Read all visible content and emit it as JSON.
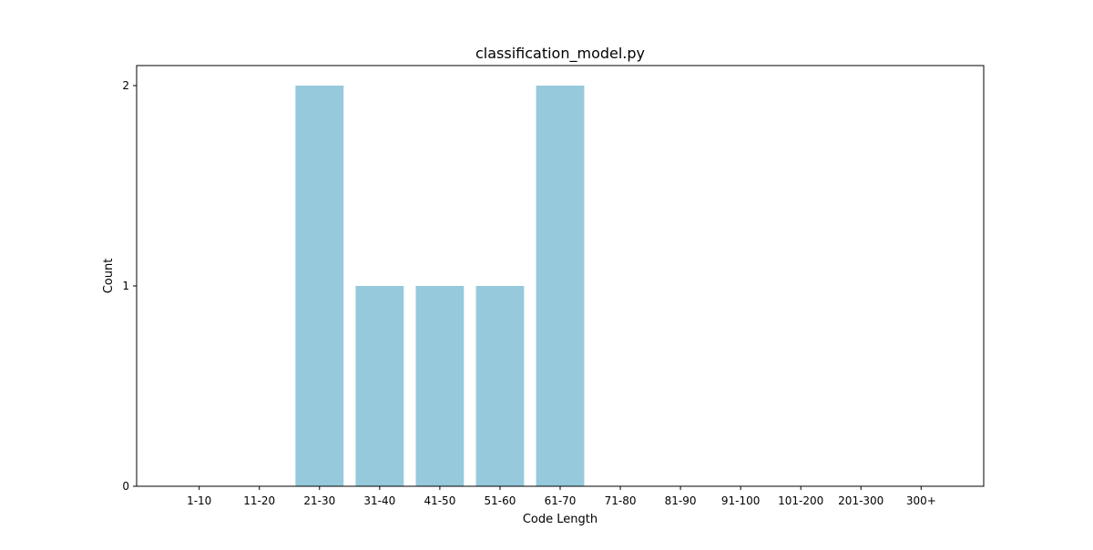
{
  "chart_data": {
    "type": "bar",
    "title": "classification_model.py",
    "xlabel": "Code Length",
    "ylabel": "Count",
    "categories": [
      "1-10",
      "11-20",
      "21-30",
      "31-40",
      "41-50",
      "51-60",
      "61-70",
      "71-80",
      "81-90",
      "91-100",
      "101-200",
      "201-300",
      "300+"
    ],
    "values": [
      0,
      0,
      2,
      1,
      1,
      1,
      2,
      0,
      0,
      0,
      0,
      0,
      0
    ],
    "yticks": [
      0,
      1,
      2
    ],
    "ylim": [
      0,
      2.1
    ],
    "grid": false,
    "legend": "none",
    "bar_color": "#96c9dc"
  }
}
